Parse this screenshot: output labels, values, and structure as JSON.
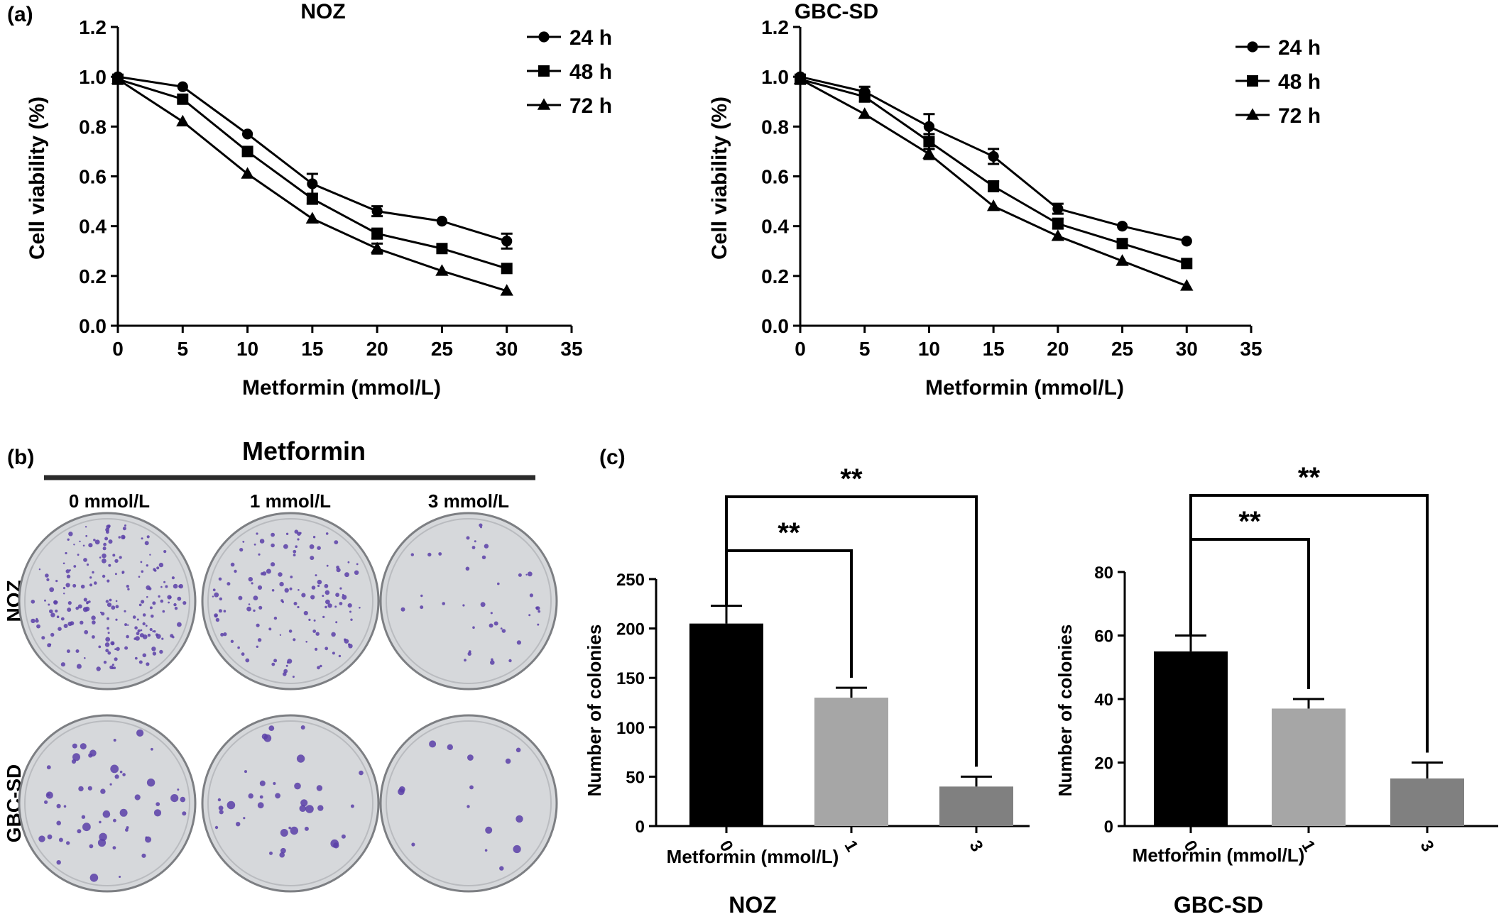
{
  "panel_labels": {
    "a": "(a)",
    "b": "(b)",
    "c": "(c)"
  },
  "legend": [
    "24 h",
    "48 h",
    "72 h"
  ],
  "chart_data": [
    {
      "type": "line",
      "title": "NOZ",
      "xlabel": "Metformin (mmol/L)",
      "ylabel": "Cell viability (%)",
      "xlim": [
        0,
        35
      ],
      "ylim": [
        0,
        1.2
      ],
      "xticks": [
        "0",
        "5",
        "10",
        "15",
        "20",
        "25",
        "30",
        "35"
      ],
      "yticks": [
        "0.0",
        "0.2",
        "0.4",
        "0.6",
        "0.8",
        "1.0",
        "1.2"
      ],
      "x": [
        0,
        5,
        10,
        15,
        20,
        25,
        30
      ],
      "series": [
        {
          "name": "24 h",
          "marker": "circle",
          "values": [
            1.0,
            0.96,
            0.77,
            0.57,
            0.46,
            0.42,
            0.34
          ],
          "errors": [
            0.01,
            0.01,
            0.01,
            0.04,
            0.02,
            0.01,
            0.03
          ]
        },
        {
          "name": "48 h",
          "marker": "square",
          "values": [
            0.99,
            0.91,
            0.7,
            0.51,
            0.37,
            0.31,
            0.23
          ],
          "errors": [
            0.01,
            0.01,
            0.01,
            0.02,
            0.02,
            0.01,
            0.01
          ]
        },
        {
          "name": "72 h",
          "marker": "triangle",
          "values": [
            0.99,
            0.82,
            0.61,
            0.43,
            0.31,
            0.22,
            0.14
          ],
          "errors": [
            0.01,
            0.01,
            0.01,
            0.01,
            0.02,
            0.01,
            0.01
          ]
        }
      ],
      "grid": false,
      "legend_position": "top-right"
    },
    {
      "type": "line",
      "title": "GBC-SD",
      "xlabel": "Metformin (mmol/L)",
      "ylabel": "Cell viability (%)",
      "xlim": [
        0,
        35
      ],
      "ylim": [
        0,
        1.2
      ],
      "xticks": [
        "0",
        "5",
        "10",
        "15",
        "20",
        "25",
        "30",
        "35"
      ],
      "yticks": [
        "0.0",
        "0.2",
        "0.4",
        "0.6",
        "0.8",
        "1.0",
        "1.2"
      ],
      "x": [
        0,
        5,
        10,
        15,
        20,
        25,
        30
      ],
      "series": [
        {
          "name": "24 h",
          "marker": "circle",
          "values": [
            1.0,
            0.94,
            0.8,
            0.68,
            0.47,
            0.4,
            0.34
          ],
          "errors": [
            0.01,
            0.02,
            0.05,
            0.03,
            0.02,
            0.01,
            0.01
          ]
        },
        {
          "name": "48 h",
          "marker": "square",
          "values": [
            0.99,
            0.92,
            0.74,
            0.56,
            0.41,
            0.33,
            0.25
          ],
          "errors": [
            0.01,
            0.02,
            0.03,
            0.02,
            0.02,
            0.01,
            0.01
          ]
        },
        {
          "name": "72 h",
          "marker": "triangle",
          "values": [
            0.99,
            0.85,
            0.69,
            0.48,
            0.36,
            0.26,
            0.16
          ],
          "errors": [
            0.01,
            0.01,
            0.02,
            0.01,
            0.01,
            0.01,
            0.01
          ]
        }
      ],
      "grid": false,
      "legend_position": "top-right"
    },
    {
      "type": "bar",
      "title": "NOZ",
      "xlabel": "Metformin (mmol/L)",
      "ylabel": "Number of colonies",
      "categories": [
        "0",
        "1",
        "3"
      ],
      "values": [
        205,
        130,
        40
      ],
      "errors": [
        18,
        10,
        10
      ],
      "colors": [
        "#000000",
        "#a6a6a6",
        "#808080"
      ],
      "ylim": [
        0,
        250
      ],
      "yticks": [
        "0",
        "50",
        "100",
        "150",
        "200",
        "250"
      ],
      "significance": [
        {
          "from": "0",
          "to": "1",
          "label": "**"
        },
        {
          "from": "0",
          "to": "3",
          "label": "**"
        }
      ],
      "grid": false
    },
    {
      "type": "bar",
      "title": "GBC-SD",
      "xlabel": "Metformin (mmol/L)",
      "ylabel": "Number of colonies",
      "categories": [
        "0",
        "1",
        "3"
      ],
      "values": [
        55,
        37,
        15
      ],
      "errors": [
        5,
        3,
        5
      ],
      "colors": [
        "#000000",
        "#a6a6a6",
        "#808080"
      ],
      "ylim": [
        0,
        80
      ],
      "yticks": [
        "0",
        "20",
        "40",
        "60",
        "80"
      ],
      "significance": [
        {
          "from": "0",
          "to": "1",
          "label": "**"
        },
        {
          "from": "0",
          "to": "3",
          "label": "**"
        }
      ],
      "grid": false
    }
  ],
  "plates": {
    "header": "Metformin",
    "columns": [
      "0 mmol/L",
      "1 mmol/L",
      "3 mmol/L"
    ],
    "rows": [
      "NOZ",
      "GBC-SD"
    ],
    "colony_counts": [
      [
        205,
        130,
        40
      ],
      [
        55,
        37,
        15
      ]
    ],
    "plate_color": "#d6d8db",
    "colony_color": "#5b3fa8"
  }
}
